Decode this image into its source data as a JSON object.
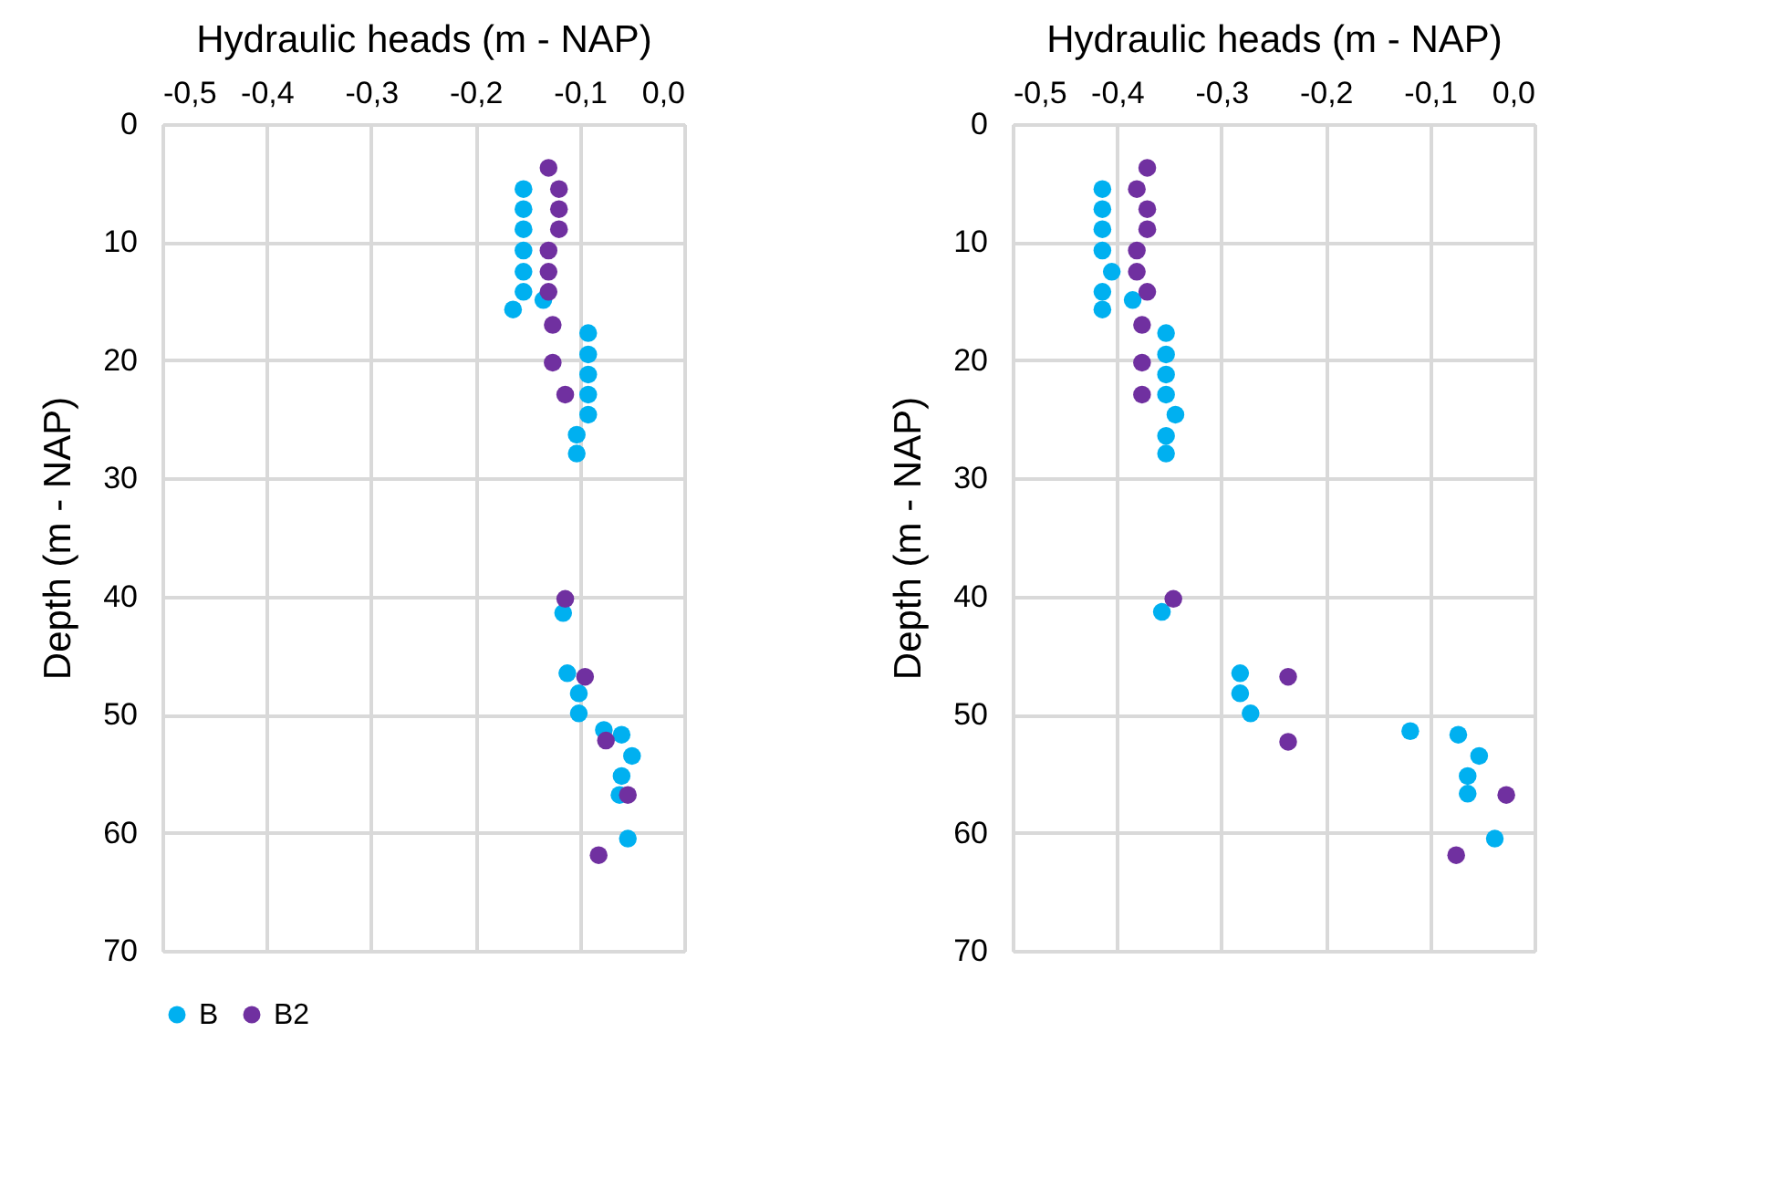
{
  "chart_data": [
    {
      "type": "scatter",
      "xlabel": "Hydraulic heads (m - NAP)",
      "ylabel": "Depth (m - NAP)",
      "marker": "circle",
      "grid": true,
      "legend": "bottom",
      "xlim": [
        -0.5,
        0.0
      ],
      "xticks": [
        {
          "value": -0.5,
          "label": "-0,5"
        },
        {
          "value": -0.4,
          "label": "-0,4"
        },
        {
          "value": -0.3,
          "label": "-0,3"
        },
        {
          "value": -0.2,
          "label": "-0,2"
        },
        {
          "value": -0.1,
          "label": "-0,1"
        },
        {
          "value": 0.0,
          "label": "0,0"
        }
      ],
      "ylim": [
        70,
        0
      ],
      "yticks": [
        0,
        10,
        20,
        30,
        40,
        50,
        60,
        70
      ],
      "series": [
        {
          "name": "B",
          "color": "#00b0f0",
          "x": [
            -0.154,
            -0.154,
            -0.154,
            -0.154,
            -0.154,
            -0.154,
            -0.164,
            -0.135,
            -0.092,
            -0.092,
            -0.092,
            -0.092,
            -0.092,
            -0.103,
            -0.103,
            -0.116,
            -0.112,
            -0.101,
            -0.101,
            -0.077,
            -0.06,
            -0.05,
            -0.06,
            -0.062,
            -0.054
          ],
          "values": [
            5.5,
            7.2,
            8.9,
            10.7,
            12.5,
            14.2,
            15.7,
            14.9,
            17.7,
            19.5,
            21.2,
            22.9,
            24.6,
            26.3,
            27.9,
            41.4,
            46.5,
            48.2,
            49.9,
            51.3,
            51.7,
            53.5,
            55.2,
            56.8,
            60.5
          ]
        },
        {
          "name": "B2",
          "color": "#7030a0",
          "x": [
            -0.13,
            -0.12,
            -0.12,
            -0.12,
            -0.13,
            -0.13,
            -0.13,
            -0.126,
            -0.126,
            -0.114,
            -0.114,
            -0.095,
            -0.075,
            -0.054,
            -0.082
          ],
          "values": [
            3.7,
            5.5,
            7.2,
            8.9,
            10.7,
            12.5,
            14.2,
            17.0,
            20.2,
            22.9,
            40.2,
            46.8,
            52.2,
            56.8,
            61.9
          ]
        }
      ]
    },
    {
      "type": "scatter",
      "xlabel": "Hydraulic heads (m - NAP)",
      "ylabel": "Depth (m - NAP)",
      "marker": "circle",
      "grid": true,
      "legend": "bottom",
      "xlim": [
        -0.5,
        0.0
      ],
      "xticks": [
        {
          "value": -0.5,
          "label": "-0,5"
        },
        {
          "value": -0.4,
          "label": "-0,4"
        },
        {
          "value": -0.3,
          "label": "-0,3"
        },
        {
          "value": -0.2,
          "label": "-0,2"
        },
        {
          "value": -0.1,
          "label": "-0,1"
        },
        {
          "value": 0.0,
          "label": "0,0"
        }
      ],
      "ylim": [
        70,
        0
      ],
      "yticks": [
        0,
        10,
        20,
        30,
        40,
        50,
        60,
        70
      ],
      "series": [
        {
          "name": "B",
          "color": "#00b0f0",
          "x": [
            -0.414,
            -0.414,
            -0.414,
            -0.414,
            -0.405,
            -0.414,
            -0.414,
            -0.385,
            -0.353,
            -0.353,
            -0.353,
            -0.353,
            -0.344,
            -0.353,
            -0.353,
            -0.357,
            -0.282,
            -0.282,
            -0.272,
            -0.119,
            -0.073,
            -0.053,
            -0.064,
            -0.064,
            -0.038
          ],
          "values": [
            5.5,
            7.2,
            8.9,
            10.7,
            12.5,
            14.2,
            15.7,
            14.9,
            17.7,
            19.5,
            21.2,
            22.9,
            24.6,
            26.4,
            27.9,
            41.3,
            46.5,
            48.2,
            49.9,
            51.4,
            51.7,
            53.5,
            55.2,
            56.7,
            60.5
          ]
        },
        {
          "name": "B2",
          "color": "#7030a0",
          "x": [
            -0.371,
            -0.381,
            -0.371,
            -0.371,
            -0.381,
            -0.381,
            -0.371,
            -0.376,
            -0.376,
            -0.376,
            -0.346,
            -0.236,
            -0.236,
            -0.027,
            -0.075
          ],
          "values": [
            3.7,
            5.5,
            7.2,
            8.9,
            10.7,
            12.5,
            14.2,
            17.0,
            20.2,
            22.9,
            40.2,
            46.8,
            52.3,
            56.8,
            61.9
          ]
        }
      ]
    }
  ]
}
